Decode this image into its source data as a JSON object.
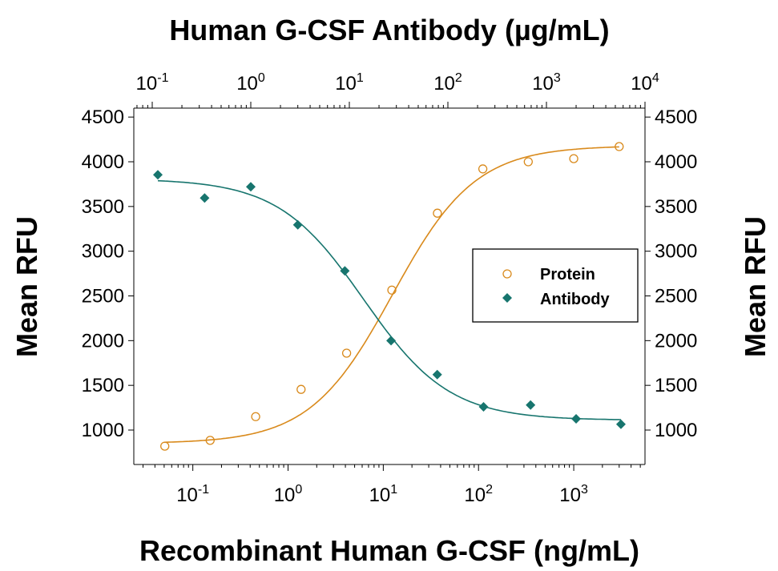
{
  "chart_data": {
    "type": "scatter",
    "top_title": "Human G-CSF Antibody (µg/mL)",
    "xlabel": "Recombinant Human G-CSF (ng/mL)",
    "ylabel_left": "Mean RFU",
    "ylabel_right": "Mean RFU",
    "x_scale": "log",
    "x_bottom_range": [
      0.024,
      5600
    ],
    "x_top_range": [
      0.065,
      10000
    ],
    "ylim": [
      615,
      4600
    ],
    "y_ticks": [
      1000,
      1500,
      2000,
      2500,
      3000,
      3500,
      4000,
      4500
    ],
    "x_bottom_tick_exponents": [
      -1,
      0,
      1,
      2,
      3
    ],
    "x_top_tick_exponents": [
      -1,
      0,
      1,
      2,
      3,
      4
    ],
    "grid": false,
    "legend_placement": "right-center",
    "series": [
      {
        "name": "Protein",
        "axis": "bottom",
        "marker": "open-circle",
        "color": "#D98A1C",
        "x": [
          0.0508,
          0.152,
          0.457,
          1.37,
          4.12,
          12.3,
          37,
          111,
          333,
          1000,
          3000
        ],
        "y": [
          820,
          885,
          1150,
          1455,
          1860,
          2565,
          3425,
          3920,
          4000,
          4035,
          4170
        ]
      },
      {
        "name": "Antibody",
        "axis": "top",
        "marker": "filled-diamond",
        "color": "#17756E",
        "x": [
          0.114,
          0.34,
          1.0,
          3.0,
          9.0,
          26.5,
          78,
          230,
          690,
          2000,
          5700
        ],
        "y": [
          3855,
          3595,
          3720,
          3295,
          2780,
          2000,
          1620,
          1260,
          1280,
          1125,
          1065
        ]
      }
    ]
  }
}
